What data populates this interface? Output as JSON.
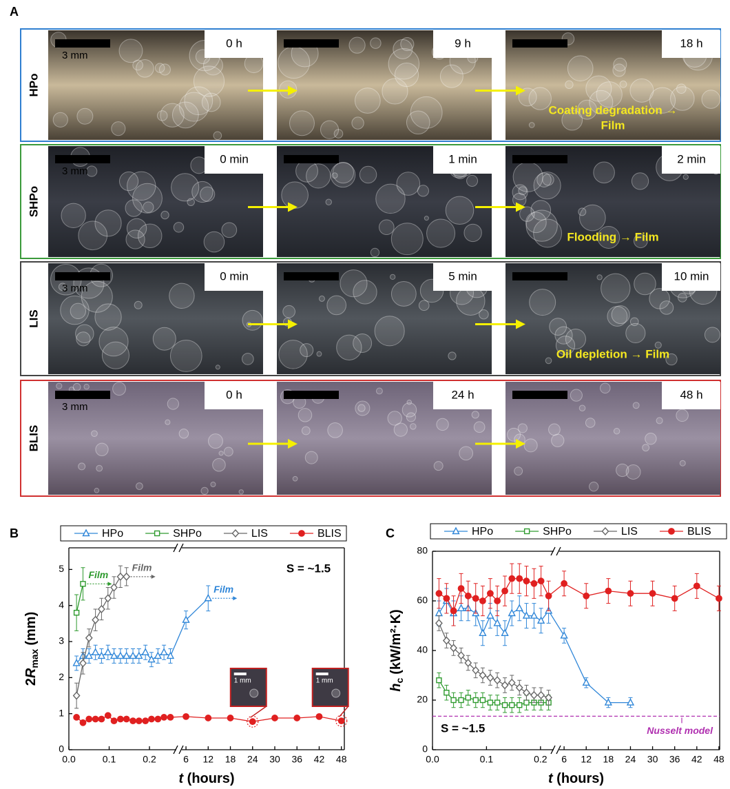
{
  "panel_labels": [
    "A",
    "B",
    "C"
  ],
  "panel_a": {
    "scale_bar": "3 mm",
    "rows": [
      {
        "label": "HPo",
        "color": "#2f7fd0",
        "times": [
          "0 h",
          "9 h",
          "18 h"
        ],
        "note": [
          "Coating degradation →",
          "Film"
        ]
      },
      {
        "label": "SHPo",
        "color": "#3a9a3a",
        "times": [
          "0 min",
          "1 min",
          "2 min"
        ],
        "note": [
          "Flooding → Film"
        ]
      },
      {
        "label": "LIS",
        "color": "#444444",
        "times": [
          "0 min",
          "5 min",
          "10 min"
        ],
        "note": [
          "Oil depletion → Film"
        ]
      },
      {
        "label": "BLIS",
        "color": "#d03030",
        "times": [
          "0 h",
          "24 h",
          "48 h"
        ]
      }
    ]
  },
  "chart_data": [
    {
      "type": "line",
      "panel_label": "B",
      "x_label": {
        "symbol": "t",
        "unit": "(hours)"
      },
      "y_label": {
        "prefix": "2",
        "symbol": "R",
        "subscript": "max",
        "unit": "(mm)"
      },
      "xlim": [
        [
          0,
          0.27
        ],
        [
          4.5,
          48.8
        ]
      ],
      "xticks": [
        [
          {
            "value": 0,
            "label": "0.0"
          },
          0.1,
          0.2
        ],
        [
          6,
          12,
          18,
          24,
          30,
          36,
          42,
          48
        ]
      ],
      "ylim": [
        0,
        5.6
      ],
      "yticks": [
        0,
        1,
        2,
        3,
        4,
        5
      ],
      "annotation": "S = ~1.5",
      "series": [
        {
          "name": "HPo",
          "color": "#2f86d8",
          "marker": "triangle",
          "x": [
            0.019,
            0.035,
            0.05,
            0.066,
            0.081,
            0.097,
            0.112,
            0.128,
            0.143,
            0.159,
            0.174,
            0.19,
            0.205,
            0.221,
            0.236,
            0.252,
            6,
            12
          ],
          "values": [
            2.4,
            2.6,
            2.6,
            2.7,
            2.6,
            2.7,
            2.6,
            2.6,
            2.6,
            2.6,
            2.6,
            2.7,
            2.5,
            2.6,
            2.7,
            2.6,
            3.6,
            4.2
          ],
          "errors": [
            0.2,
            0.2,
            0.2,
            0.2,
            0.2,
            0.2,
            0.2,
            0.2,
            0.2,
            0.2,
            0.2,
            0.2,
            0.2,
            0.2,
            0.2,
            0.2,
            0.25,
            0.35
          ],
          "annotation": "Film"
        },
        {
          "name": "SHPo",
          "color": "#2e9a2e",
          "marker": "square",
          "x": [
            0.019,
            0.035
          ],
          "values": [
            3.8,
            4.6
          ],
          "errors": [
            0.5,
            0.45
          ],
          "annotation": "Film"
        },
        {
          "name": "LIS",
          "color": "#666666",
          "marker": "diamond",
          "x": [
            0.019,
            0.035,
            0.05,
            0.066,
            0.081,
            0.097,
            0.112,
            0.128,
            0.143
          ],
          "values": [
            1.5,
            2.4,
            3.1,
            3.6,
            3.9,
            4.2,
            4.5,
            4.8,
            4.8
          ],
          "errors": [
            0.35,
            0.3,
            0.25,
            0.3,
            0.3,
            0.3,
            0.3,
            0.3,
            0.25
          ],
          "annotation": "Film"
        },
        {
          "name": "BLIS",
          "color": "#e02020",
          "marker": "circle",
          "x": [
            0.019,
            0.035,
            0.05,
            0.066,
            0.081,
            0.097,
            0.112,
            0.128,
            0.143,
            0.159,
            0.174,
            0.19,
            0.205,
            0.221,
            0.236,
            0.252,
            6,
            12,
            18,
            24,
            30,
            36,
            42,
            48
          ],
          "values": [
            0.9,
            0.75,
            0.85,
            0.85,
            0.85,
            0.95,
            0.8,
            0.85,
            0.85,
            0.8,
            0.8,
            0.8,
            0.85,
            0.85,
            0.9,
            0.9,
            0.92,
            0.88,
            0.88,
            0.78,
            0.88,
            0.88,
            0.92,
            0.8
          ]
        }
      ],
      "insets": [
        {
          "x": 24,
          "label": "1 mm"
        },
        {
          "x": 48,
          "label": "1 mm"
        }
      ]
    },
    {
      "type": "line",
      "panel_label": "C",
      "x_label": {
        "symbol": "t",
        "unit": "(hours)"
      },
      "y_label": {
        "symbol": "h",
        "subscript": "c",
        "unit": "(kW/m²·K)"
      },
      "xlim": [
        [
          0,
          0.227
        ],
        [
          4.3,
          48.2
        ]
      ],
      "xticks": [
        [
          {
            "value": 0,
            "label": "0.0"
          },
          0.1,
          0.2
        ],
        [
          6,
          12,
          18,
          24,
          30,
          36,
          42,
          48
        ]
      ],
      "ylim": [
        0,
        80
      ],
      "yticks": [
        0,
        20,
        40,
        60,
        80
      ],
      "annotation": "S = ~1.5",
      "reference_line": {
        "value": 13.5,
        "label": "Nusselt model",
        "color": "#b030b0"
      },
      "series": [
        {
          "name": "HPo",
          "color": "#2f86d8",
          "marker": "triangle",
          "x": [
            0.012,
            0.026,
            0.039,
            0.053,
            0.066,
            0.08,
            0.093,
            0.107,
            0.12,
            0.134,
            0.147,
            0.161,
            0.174,
            0.188,
            0.201,
            0.215,
            6,
            12,
            18,
            24
          ],
          "values": [
            55,
            60,
            55,
            57,
            57,
            55,
            47,
            54,
            51,
            47,
            55,
            57,
            54,
            54,
            52,
            56,
            46,
            27,
            19,
            19
          ],
          "errors": [
            5,
            5,
            5,
            5,
            5,
            5,
            5,
            5,
            5,
            5,
            5,
            5,
            5,
            5,
            5,
            5,
            3,
            2,
            2,
            2
          ]
        },
        {
          "name": "SHPo",
          "color": "#2e9a2e",
          "marker": "square",
          "x": [
            0.012,
            0.026,
            0.039,
            0.053,
            0.066,
            0.08,
            0.093,
            0.107,
            0.12,
            0.134,
            0.147,
            0.161,
            0.174,
            0.188,
            0.201,
            0.215
          ],
          "values": [
            28,
            23,
            20,
            20,
            21,
            20,
            20,
            19,
            19,
            18,
            18,
            18,
            19,
            19,
            19,
            19
          ],
          "errors": [
            3,
            3,
            3,
            3,
            3,
            3,
            3,
            3,
            3,
            3,
            3,
            3,
            3,
            3,
            3,
            3
          ]
        },
        {
          "name": "LIS",
          "color": "#666666",
          "marker": "diamond",
          "x": [
            0.012,
            0.026,
            0.039,
            0.053,
            0.066,
            0.08,
            0.093,
            0.107,
            0.12,
            0.134,
            0.147,
            0.161,
            0.174,
            0.188,
            0.201,
            0.215
          ],
          "values": [
            51,
            44,
            41,
            38,
            35,
            32,
            30,
            29,
            28,
            26,
            27,
            25,
            23,
            22,
            22,
            21
          ],
          "errors": [
            3,
            3,
            3,
            3,
            3,
            3,
            3,
            3,
            3,
            3,
            3,
            3,
            3,
            3,
            3,
            3
          ]
        },
        {
          "name": "BLIS",
          "color": "#e02020",
          "marker": "circle",
          "x": [
            0.012,
            0.026,
            0.039,
            0.053,
            0.066,
            0.08,
            0.093,
            0.107,
            0.12,
            0.134,
            0.147,
            0.161,
            0.174,
            0.188,
            0.201,
            0.215,
            6,
            12,
            18,
            24,
            30,
            36,
            42,
            48
          ],
          "values": [
            63,
            61,
            56,
            65,
            62,
            61,
            60,
            63,
            60,
            64,
            69,
            69,
            68,
            67,
            68,
            62,
            67,
            62,
            64,
            63,
            63,
            61,
            66,
            61
          ],
          "errors": [
            6,
            6,
            6,
            6,
            6,
            6,
            6,
            6,
            6,
            6,
            6,
            6,
            6,
            6,
            6,
            6,
            5,
            5,
            5,
            5,
            5,
            5,
            5,
            5
          ]
        }
      ]
    }
  ]
}
